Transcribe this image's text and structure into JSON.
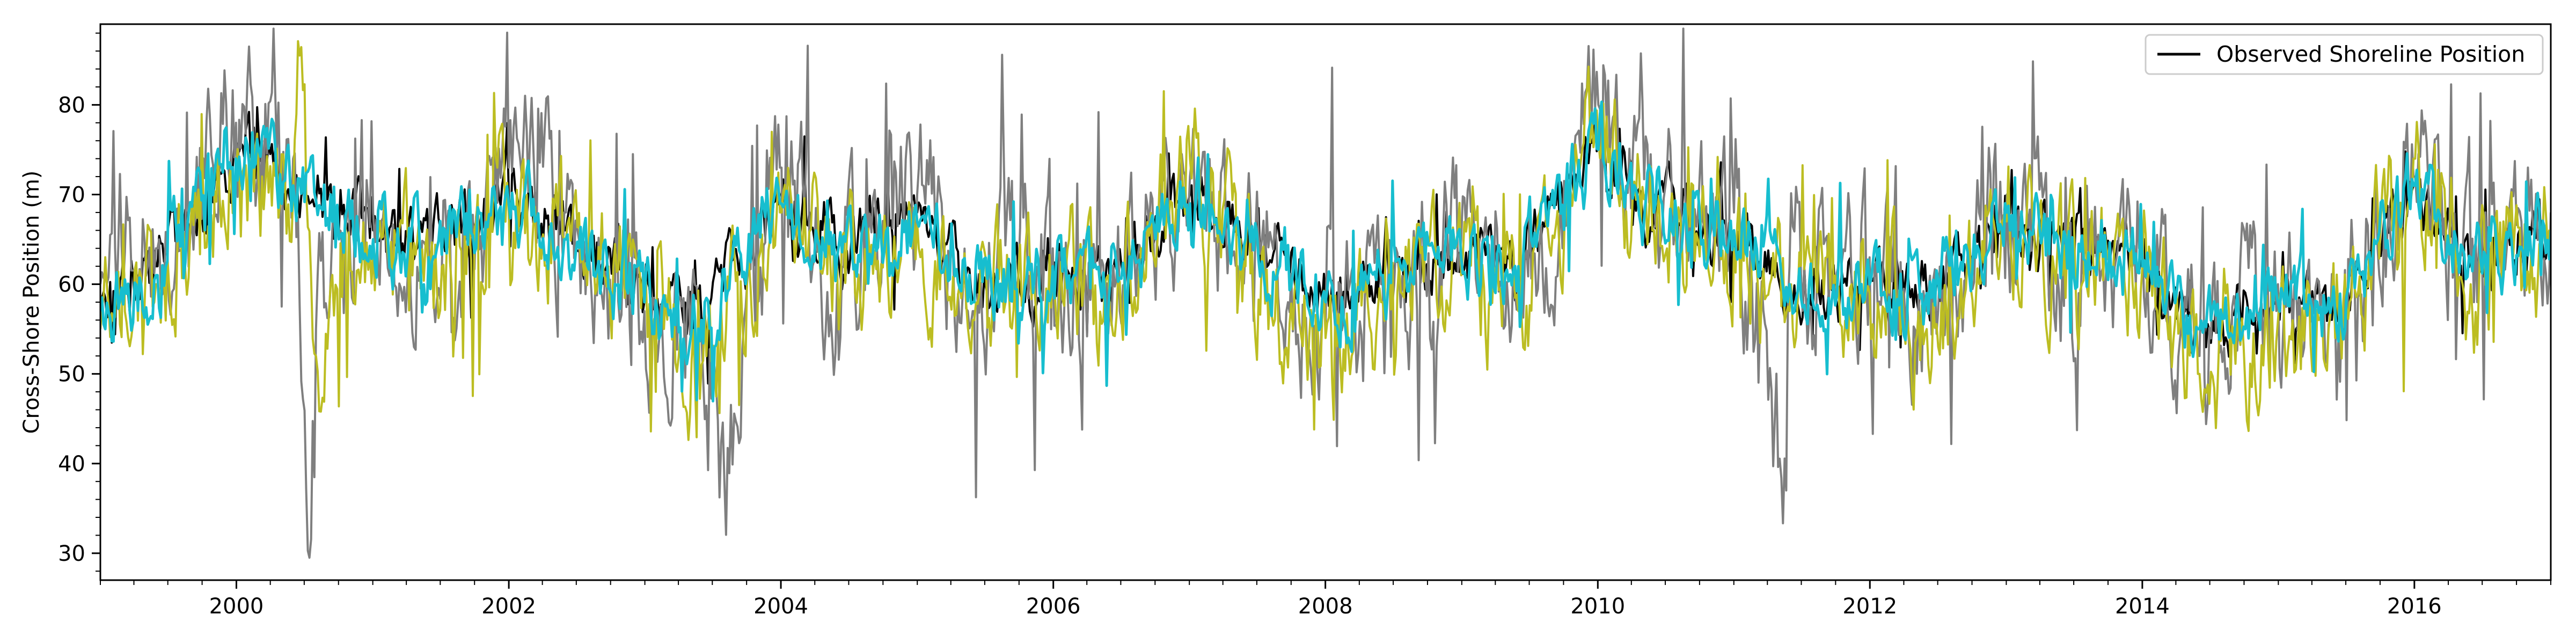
{
  "chart_data": {
    "type": "line",
    "title": "",
    "xlabel": "",
    "ylabel": "Cross-Shore Position (m)",
    "xlim": [
      "1999-01-01",
      "2017-01-01"
    ],
    "ylim": [
      27,
      89
    ],
    "x_ticks": [
      "2000",
      "2002",
      "2004",
      "2006",
      "2008",
      "2010",
      "2012",
      "2014",
      "2016"
    ],
    "y_ticks": [
      30,
      40,
      50,
      60,
      70,
      80
    ],
    "grid": false,
    "legend": {
      "position": "top-right",
      "entries": [
        {
          "label": "Observed Shoreline Position",
          "color": "#000000"
        }
      ]
    },
    "series": [
      {
        "name": "Observed Shoreline Position",
        "color": "#000000",
        "style": "line",
        "x": [
          "1999-01-01",
          "1999-06-01",
          "2000-01-01",
          "2000-06-01",
          "2001-01-01",
          "2001-06-01",
          "2002-01-01",
          "2002-06-01",
          "2003-01-01",
          "2003-06-01",
          "2004-01-01",
          "2004-06-01",
          "2005-01-01",
          "2005-06-01",
          "2006-01-01",
          "2006-06-01",
          "2007-01-01",
          "2007-06-01",
          "2008-01-01",
          "2008-06-01",
          "2009-01-01",
          "2009-06-01",
          "2010-01-01",
          "2010-06-01",
          "2011-01-01",
          "2011-06-01",
          "2012-01-01",
          "2012-06-01",
          "2013-01-01",
          "2013-06-01",
          "2014-01-01",
          "2014-06-01",
          "2015-01-01",
          "2015-06-01",
          "2016-01-01",
          "2016-06-01",
          "2017-01-01"
        ],
        "y": [
          58,
          62,
          75,
          72,
          66,
          64,
          70,
          66,
          58,
          56,
          70,
          64,
          68,
          58,
          62,
          60,
          70,
          65,
          58,
          61,
          63,
          62,
          76,
          68,
          66,
          60,
          60,
          59,
          68,
          64,
          62,
          55,
          58,
          57,
          71,
          63,
          66
        ]
      },
      {
        "name": "",
        "color": "#7f7f7f",
        "style": "line",
        "x": [
          "1999-01-01",
          "1999-06-01",
          "2000-01-01",
          "2000-06-01",
          "2000-07-15",
          "2000-08-01",
          "2001-01-01",
          "2001-06-01",
          "2002-01-01",
          "2002-06-01",
          "2003-01-01",
          "2003-06-01",
          "2003-08-01",
          "2004-01-01",
          "2004-06-01",
          "2005-01-01",
          "2005-06-01",
          "2006-01-01",
          "2006-06-01",
          "2007-01-01",
          "2007-06-01",
          "2008-01-01",
          "2008-06-01",
          "2009-01-01",
          "2009-06-01",
          "2010-01-01",
          "2010-06-01",
          "2011-01-01",
          "2011-05-20",
          "2011-06-01",
          "2012-01-01",
          "2012-06-01",
          "2013-01-01",
          "2013-06-01",
          "2014-01-01",
          "2014-06-01",
          "2015-01-01",
          "2015-06-01",
          "2016-01-01",
          "2016-06-01",
          "2017-01-01"
        ],
        "y": [
          60,
          64,
          78,
          74,
          29.5,
          55,
          68,
          62,
          73,
          68,
          57,
          54,
          38,
          73,
          60,
          70,
          57,
          64,
          58,
          72,
          64,
          55,
          60,
          65,
          60,
          80,
          70,
          68,
          37,
          62,
          63,
          57,
          70,
          62,
          66,
          52,
          60,
          56,
          72,
          63,
          68
        ]
      },
      {
        "name": "",
        "color": "#bcbd22",
        "style": "line",
        "x": [
          "1999-01-01",
          "1999-06-01",
          "2000-01-01",
          "2000-06-01",
          "2000-06-20",
          "2000-08-01",
          "2001-01-01",
          "2001-06-01",
          "2002-01-01",
          "2002-06-01",
          "2003-01-01",
          "2003-06-01",
          "2004-01-01",
          "2004-06-01",
          "2005-01-01",
          "2005-06-01",
          "2006-01-01",
          "2006-06-01",
          "2007-01-01",
          "2007-06-01",
          "2008-01-01",
          "2008-06-01",
          "2009-01-01",
          "2009-06-01",
          "2010-01-01",
          "2010-06-01",
          "2011-01-01",
          "2011-06-01",
          "2012-01-01",
          "2012-06-01",
          "2013-01-01",
          "2013-06-01",
          "2014-01-01",
          "2014-06-01",
          "2015-01-01",
          "2015-06-01",
          "2016-01-01",
          "2016-06-01",
          "2017-01-01"
        ],
        "y": [
          55,
          60,
          72,
          70,
          85.5,
          52,
          64,
          60,
          68,
          65,
          58,
          51,
          68,
          62,
          67,
          56,
          61,
          57,
          74,
          62,
          54,
          58,
          61,
          57,
          76,
          66,
          64,
          57,
          59,
          55,
          67,
          61,
          62,
          50,
          56,
          54,
          74,
          60,
          65
        ]
      },
      {
        "name": "",
        "color": "#17becf",
        "style": "line",
        "x": [
          "1999-01-01",
          "1999-06-01",
          "2000-01-01",
          "2000-06-01",
          "2001-01-01",
          "2001-06-01",
          "2002-01-01",
          "2002-06-01",
          "2003-01-01",
          "2003-06-01",
          "2004-01-01",
          "2004-06-01",
          "2005-01-01",
          "2005-06-01",
          "2006-01-01",
          "2006-06-01",
          "2007-01-01",
          "2007-06-01",
          "2008-01-01",
          "2008-06-01",
          "2009-01-01",
          "2009-06-01",
          "2010-01-01",
          "2010-06-01",
          "2011-01-01",
          "2011-06-01",
          "2012-01-01",
          "2012-06-01",
          "2013-01-01",
          "2013-06-01",
          "2014-01-01",
          "2014-06-01",
          "2015-01-01",
          "2015-06-01",
          "2016-01-01",
          "2016-06-01",
          "2017-01-01"
        ],
        "y": [
          57,
          61,
          74,
          71,
          65,
          63,
          69,
          65,
          58,
          56,
          69,
          63,
          67,
          58,
          62,
          60,
          69,
          65,
          58,
          61,
          63,
          62,
          75,
          68,
          66,
          60,
          60,
          59,
          68,
          64,
          62,
          55,
          58,
          57,
          71,
          63,
          66
        ]
      }
    ]
  }
}
